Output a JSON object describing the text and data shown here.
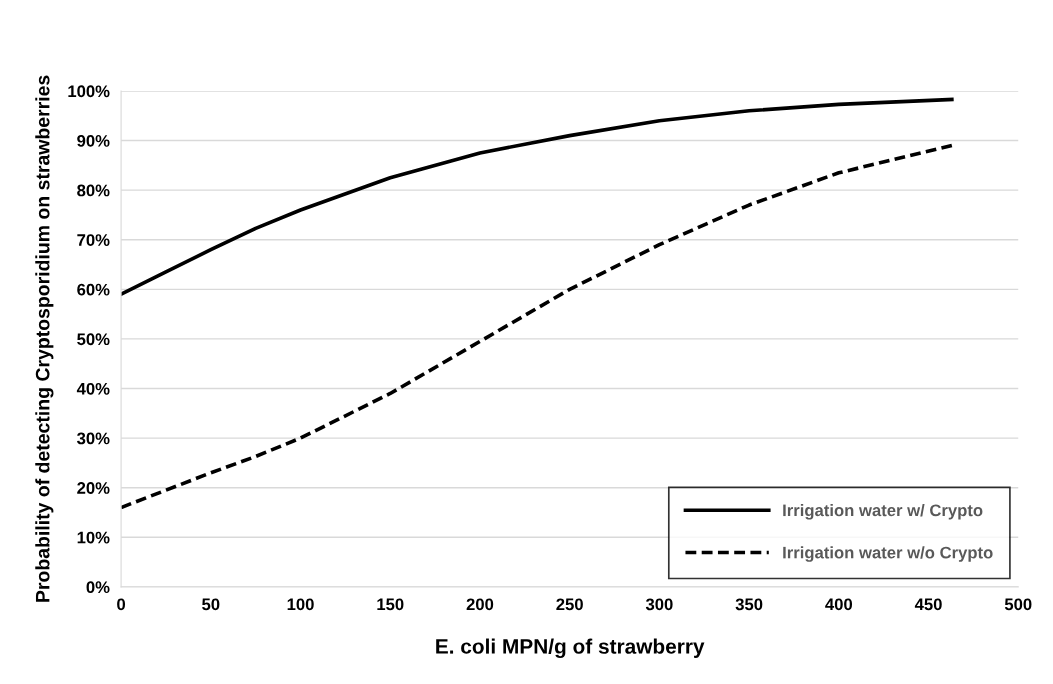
{
  "chart_data": {
    "type": "line",
    "xlabel": "E. coli MPN/g of strawberry",
    "ylabel": "Probability of detecting Cryptosporidium on strawberries",
    "series": [
      {
        "name": "Irrigation water w/ Crypto",
        "color": "#000000",
        "line_style": "solid",
        "x": [
          0,
          25,
          50,
          75,
          100,
          150,
          200,
          250,
          300,
          350,
          400,
          463
        ],
        "values": [
          59,
          63.5,
          68,
          72.3,
          76,
          82.5,
          87.5,
          91,
          94,
          96,
          97.3,
          98.3
        ]
      },
      {
        "name": "Irrigation water w/o Crypto",
        "color": "#000000",
        "line_style": "dashed",
        "x": [
          0,
          25,
          50,
          75,
          100,
          150,
          200,
          250,
          300,
          350,
          400,
          463
        ],
        "values": [
          16,
          19.5,
          23,
          26.3,
          30,
          39,
          49.5,
          60,
          69,
          77,
          83.5,
          89
        ]
      }
    ],
    "xlim": [
      0,
      500
    ],
    "xticks": [
      0,
      50,
      100,
      150,
      200,
      250,
      300,
      350,
      400,
      450,
      500
    ],
    "ylim": [
      0,
      100
    ],
    "yticks": [
      {
        "value": 0,
        "label": "0%"
      },
      {
        "value": 10,
        "label": "10%"
      },
      {
        "value": 20,
        "label": "20%"
      },
      {
        "value": 30,
        "label": "30%"
      },
      {
        "value": 40,
        "label": "40%"
      },
      {
        "value": 50,
        "label": "50%"
      },
      {
        "value": 60,
        "label": "60%"
      },
      {
        "value": 70,
        "label": "70%"
      },
      {
        "value": 80,
        "label": "80%"
      },
      {
        "value": 90,
        "label": "90%"
      },
      {
        "value": 100,
        "label": "100%"
      }
    ],
    "grid": "y",
    "legend": "bottom right"
  }
}
